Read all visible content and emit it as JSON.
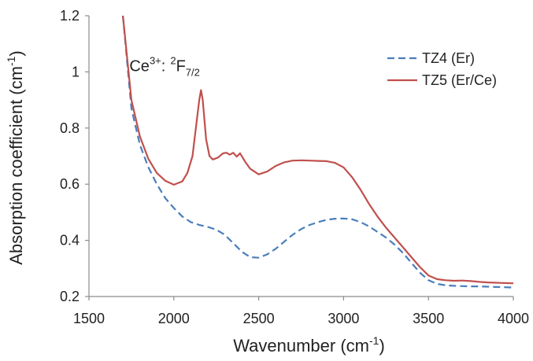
{
  "chart_data": {
    "type": "line",
    "title": "",
    "xlabel_main": "Wavenumber (cm",
    "xlabel_sup": "-1",
    "xlabel_close": ")",
    "ylabel_main": "Absorption coefficient (cm",
    "ylabel_sup": "-1",
    "ylabel_close": ")",
    "xlim": [
      1500,
      4000
    ],
    "ylim": [
      0.2,
      1.2
    ],
    "x_ticks": [
      "1500",
      "2000",
      "2500",
      "3000",
      "3500",
      "4000"
    ],
    "y_ticks": [
      "0.2",
      "0.4",
      "0.6",
      "0.8",
      "1",
      "1.2"
    ],
    "grid": false,
    "legend_position": "top-right",
    "annotation": {
      "ion": "Ce",
      "ion_sup": "3+",
      "colon": ":",
      "term_pre": "2",
      "term_letter": "F",
      "term_sub": "7/2",
      "x": 2100,
      "y": 1.0
    },
    "series": [
      {
        "name": "TZ4 (Er)",
        "color": "#4a7ebb",
        "style": "dashed",
        "x": [
          1700,
          1750,
          1800,
          1850,
          1900,
          1950,
          2000,
          2050,
          2100,
          2150,
          2200,
          2250,
          2300,
          2350,
          2400,
          2450,
          2500,
          2550,
          2600,
          2650,
          2700,
          2750,
          2800,
          2850,
          2900,
          2950,
          3000,
          3050,
          3100,
          3150,
          3200,
          3250,
          3300,
          3350,
          3400,
          3450,
          3500,
          3550,
          3600,
          3650,
          3700,
          3750,
          3800,
          3850,
          3900,
          3950,
          4000
        ],
        "y": [
          1.2,
          0.87,
          0.74,
          0.66,
          0.6,
          0.55,
          0.515,
          0.485,
          0.465,
          0.455,
          0.448,
          0.438,
          0.42,
          0.39,
          0.36,
          0.34,
          0.338,
          0.35,
          0.37,
          0.395,
          0.42,
          0.44,
          0.455,
          0.465,
          0.473,
          0.477,
          0.478,
          0.475,
          0.465,
          0.45,
          0.43,
          0.41,
          0.385,
          0.355,
          0.32,
          0.285,
          0.258,
          0.245,
          0.24,
          0.238,
          0.237,
          0.236,
          0.236,
          0.235,
          0.234,
          0.233,
          0.232
        ]
      },
      {
        "name": "TZ5 (Er/Ce)",
        "color": "#c0504d",
        "style": "solid",
        "x": [
          1700,
          1750,
          1800,
          1850,
          1900,
          1950,
          2000,
          2050,
          2080,
          2110,
          2130,
          2150,
          2160,
          2170,
          2190,
          2210,
          2230,
          2260,
          2290,
          2310,
          2330,
          2350,
          2370,
          2390,
          2420,
          2450,
          2500,
          2550,
          2600,
          2650,
          2700,
          2750,
          2800,
          2850,
          2900,
          2950,
          3000,
          3050,
          3100,
          3150,
          3200,
          3250,
          3300,
          3350,
          3400,
          3450,
          3500,
          3550,
          3600,
          3650,
          3700,
          3750,
          3800,
          3850,
          3900,
          3950,
          4000
        ],
        "y": [
          1.2,
          0.9,
          0.77,
          0.69,
          0.64,
          0.612,
          0.598,
          0.61,
          0.64,
          0.7,
          0.8,
          0.9,
          0.935,
          0.9,
          0.76,
          0.7,
          0.688,
          0.695,
          0.71,
          0.712,
          0.705,
          0.712,
          0.698,
          0.71,
          0.68,
          0.655,
          0.635,
          0.645,
          0.665,
          0.678,
          0.684,
          0.685,
          0.684,
          0.683,
          0.682,
          0.676,
          0.66,
          0.625,
          0.58,
          0.53,
          0.485,
          0.445,
          0.41,
          0.375,
          0.34,
          0.305,
          0.275,
          0.262,
          0.258,
          0.256,
          0.257,
          0.255,
          0.252,
          0.25,
          0.249,
          0.248,
          0.247
        ]
      }
    ]
  }
}
